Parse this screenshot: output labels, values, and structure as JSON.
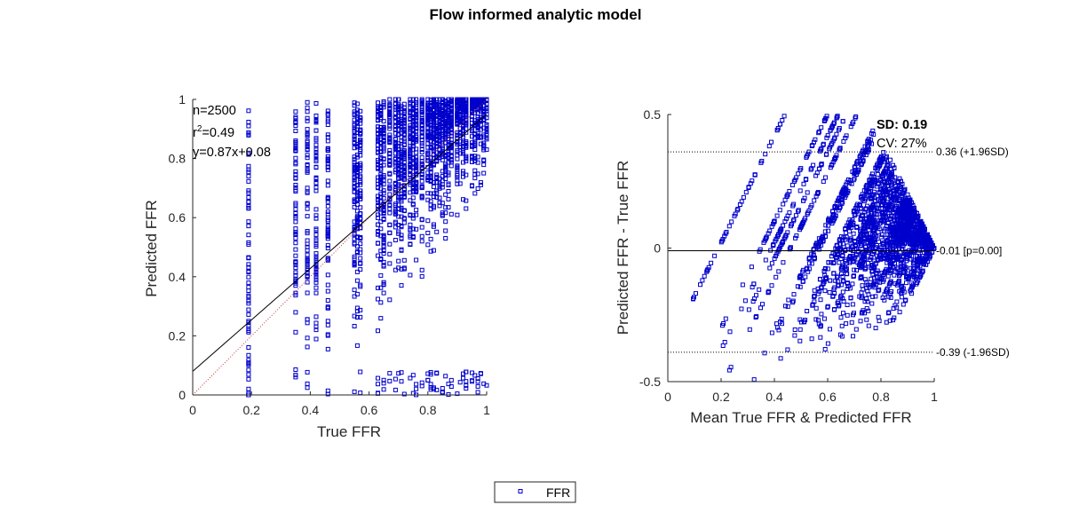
{
  "figure": {
    "title": "Flow informed analytic model"
  },
  "colors": {
    "marker": "#0000cc",
    "axis": "#262626",
    "fit": "#000000",
    "identity": "#cc3333"
  },
  "chart_data": [
    {
      "type": "scatter",
      "xlabel": "True FFR",
      "ylabel": "Predicted FFR",
      "xlim": [
        0,
        1
      ],
      "ylim": [
        0,
        1
      ],
      "xticks": [
        "0",
        "0.2",
        "0.4",
        "0.6",
        "0.8",
        "1"
      ],
      "yticks": [
        "0",
        "0.2",
        "0.4",
        "0.6",
        "0.8",
        "1"
      ],
      "annotations": {
        "n": "n=2500",
        "r2_prefix": "r",
        "r2_sup": "2",
        "r2_value": "=0.49",
        "equation": "y=0.87x+0.08"
      },
      "fit": {
        "slope": 0.87,
        "intercept": 0.08
      },
      "series": [
        {
          "name": "FFR",
          "x_columns": [
            0.19,
            0.35,
            0.39,
            0.42,
            0.46,
            0.55,
            0.56,
            0.57,
            0.63,
            0.64,
            0.65,
            0.67,
            0.69,
            0.7,
            0.71,
            0.72,
            0.74,
            0.75,
            0.76,
            0.78,
            0.8,
            0.81,
            0.82,
            0.83,
            0.84,
            0.85,
            0.86,
            0.87,
            0.88,
            0.9,
            0.91,
            0.92,
            0.93,
            0.95,
            0.96,
            0.97,
            0.98,
            0.99,
            1.0
          ],
          "points_per_column": 64
        }
      ]
    },
    {
      "type": "scatter",
      "xlabel": "Mean True FFR & Predicted FFR",
      "ylabel": "Predicted FFR - True FFR",
      "xlim": [
        0,
        1
      ],
      "ylim": [
        -0.5,
        0.5
      ],
      "xticks": [
        "0",
        "0.2",
        "0.4",
        "0.6",
        "0.8",
        "1"
      ],
      "yticks": [
        "-0.5",
        "0",
        "0.5"
      ],
      "annotations": {
        "sd": "SD: 0.19",
        "cv": "CV: 27%"
      },
      "reference_lines": [
        {
          "y": 0.36,
          "label": "0.36 (+1.96SD)",
          "style": "dotted"
        },
        {
          "y": -0.01,
          "label": "-0.01 [p=0.00]",
          "style": "solid"
        },
        {
          "y": -0.39,
          "label": "-0.39 (-1.96SD)",
          "style": "dotted"
        }
      ],
      "series": [
        {
          "name": "FFR",
          "same_points_as": "left panel"
        }
      ]
    }
  ],
  "legend": {
    "label": "FFR",
    "marker": "square"
  }
}
